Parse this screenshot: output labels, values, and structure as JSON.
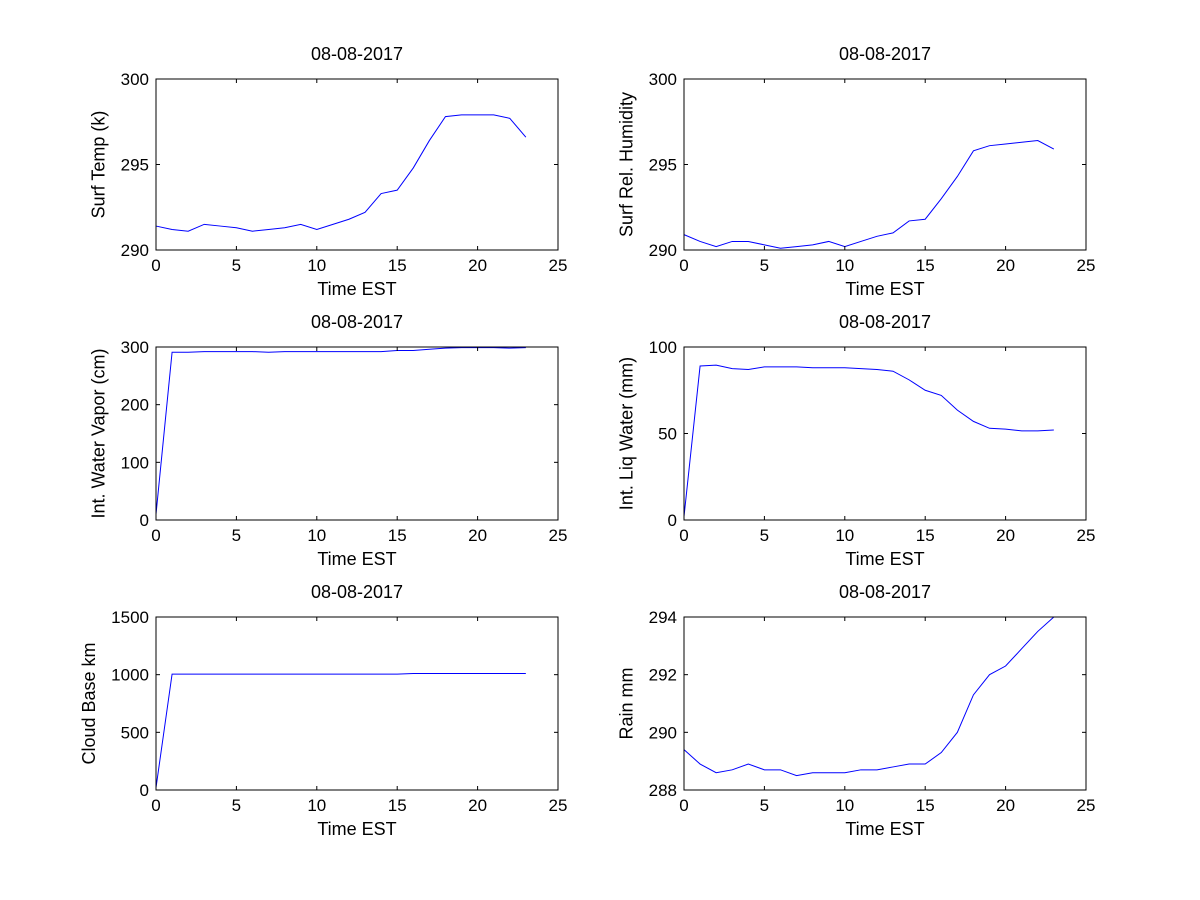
{
  "chart_data": [
    {
      "type": "line",
      "title": "08-08-2017",
      "xlabel": "Time EST",
      "ylabel": "Surf Temp (k)",
      "xlim": [
        0,
        25
      ],
      "ylim": [
        290,
        300
      ],
      "xticks": [
        "0",
        "5",
        "10",
        "15",
        "20",
        "25"
      ],
      "yticks": [
        "290",
        "295",
        "300"
      ],
      "grid": false,
      "series": [
        {
          "color": "#0000ff",
          "x": [
            0,
            1,
            2,
            3,
            4,
            5,
            6,
            7,
            8,
            9,
            10,
            11,
            12,
            13,
            14,
            15,
            16,
            17,
            18,
            19,
            20,
            21,
            22,
            23
          ],
          "y": [
            291.4,
            291.2,
            291.1,
            291.5,
            291.4,
            291.3,
            291.1,
            291.2,
            291.3,
            291.5,
            291.2,
            291.5,
            291.8,
            292.2,
            293.3,
            293.5,
            294.8,
            296.4,
            297.8,
            297.9,
            297.9,
            297.9,
            297.7,
            296.6
          ]
        }
      ]
    },
    {
      "type": "line",
      "title": "08-08-2017",
      "xlabel": "Time EST",
      "ylabel": "Surf Rel. Humidity",
      "xlim": [
        0,
        25
      ],
      "ylim": [
        290,
        300
      ],
      "xticks": [
        "0",
        "5",
        "10",
        "15",
        "20",
        "25"
      ],
      "yticks": [
        "290",
        "295",
        "300"
      ],
      "grid": false,
      "series": [
        {
          "color": "#0000ff",
          "x": [
            0,
            1,
            2,
            3,
            4,
            5,
            6,
            7,
            8,
            9,
            10,
            11,
            12,
            13,
            14,
            15,
            16,
            17,
            18,
            19,
            20,
            21,
            22,
            23
          ],
          "y": [
            290.9,
            290.5,
            290.2,
            290.5,
            290.5,
            290.3,
            290.1,
            290.2,
            290.3,
            290.5,
            290.2,
            290.5,
            290.8,
            291.0,
            291.7,
            291.8,
            293.0,
            294.3,
            295.8,
            296.1,
            296.2,
            296.3,
            296.4,
            295.9
          ]
        }
      ]
    },
    {
      "type": "line",
      "title": "08-08-2017",
      "xlabel": "Time EST",
      "ylabel": "Int. Water Vapor (cm)",
      "xlim": [
        0,
        25
      ],
      "ylim": [
        0,
        300
      ],
      "xticks": [
        "0",
        "5",
        "10",
        "15",
        "20",
        "25"
      ],
      "yticks": [
        "0",
        "100",
        "200",
        "300"
      ],
      "grid": false,
      "series": [
        {
          "color": "#0000ff",
          "x": [
            0,
            1,
            2,
            3,
            4,
            5,
            6,
            7,
            8,
            9,
            10,
            11,
            12,
            13,
            14,
            15,
            16,
            17,
            18,
            19,
            20,
            21,
            22,
            23
          ],
          "y": [
            10,
            291,
            291,
            292,
            292,
            292,
            292,
            291,
            292,
            292,
            292,
            292,
            292,
            292,
            292,
            294,
            294,
            296,
            298,
            299,
            299,
            299,
            298,
            299
          ]
        }
      ]
    },
    {
      "type": "line",
      "title": "08-08-2017",
      "xlabel": "Time EST",
      "ylabel": "Int. Liq Water (mm)",
      "xlim": [
        0,
        25
      ],
      "ylim": [
        0,
        100
      ],
      "xticks": [
        "0",
        "5",
        "10",
        "15",
        "20",
        "25"
      ],
      "yticks": [
        "0",
        "50",
        "100"
      ],
      "grid": false,
      "series": [
        {
          "color": "#0000ff",
          "x": [
            0,
            1,
            2,
            3,
            4,
            5,
            6,
            7,
            8,
            9,
            10,
            11,
            12,
            13,
            14,
            15,
            16,
            17,
            18,
            19,
            20,
            21,
            22,
            23
          ],
          "y": [
            2,
            89,
            89.5,
            87.5,
            87,
            88.5,
            88.5,
            88.5,
            88,
            88,
            88,
            87.5,
            87,
            86,
            81,
            75,
            72,
            63.5,
            57,
            53,
            52.5,
            51.5,
            51.5,
            52
          ]
        }
      ]
    },
    {
      "type": "line",
      "title": "08-08-2017",
      "xlabel": "Time EST",
      "ylabel": "Cloud Base km",
      "xlim": [
        0,
        25
      ],
      "ylim": [
        0,
        1500
      ],
      "xticks": [
        "0",
        "5",
        "10",
        "15",
        "20",
        "25"
      ],
      "yticks": [
        "0",
        "500",
        "1000",
        "1500"
      ],
      "grid": false,
      "series": [
        {
          "color": "#0000ff",
          "x": [
            0,
            1,
            2,
            3,
            4,
            5,
            6,
            7,
            8,
            9,
            10,
            11,
            12,
            13,
            14,
            15,
            16,
            17,
            18,
            19,
            20,
            21,
            22,
            23
          ],
          "y": [
            20,
            1005,
            1005,
            1005,
            1005,
            1005,
            1005,
            1005,
            1005,
            1005,
            1005,
            1005,
            1005,
            1005,
            1005,
            1005,
            1010,
            1010,
            1010,
            1010,
            1010,
            1010,
            1010,
            1010
          ]
        }
      ]
    },
    {
      "type": "line",
      "title": "08-08-2017",
      "xlabel": "Time EST",
      "ylabel": "Rain mm",
      "xlim": [
        0,
        25
      ],
      "ylim": [
        288,
        294
      ],
      "xticks": [
        "0",
        "5",
        "10",
        "15",
        "20",
        "25"
      ],
      "yticks": [
        "288",
        "290",
        "292",
        "294"
      ],
      "grid": false,
      "series": [
        {
          "color": "#0000ff",
          "x": [
            0,
            1,
            2,
            3,
            4,
            5,
            6,
            7,
            8,
            9,
            10,
            11,
            12,
            13,
            14,
            15,
            16,
            17,
            18,
            19,
            20,
            21,
            22,
            23
          ],
          "y": [
            289.4,
            288.9,
            288.6,
            288.7,
            288.9,
            288.7,
            288.7,
            288.5,
            288.6,
            288.6,
            288.6,
            288.7,
            288.7,
            288.8,
            288.9,
            288.9,
            289.3,
            290.0,
            291.3,
            292.0,
            292.3,
            292.9,
            293.5,
            294.0
          ]
        }
      ]
    }
  ]
}
